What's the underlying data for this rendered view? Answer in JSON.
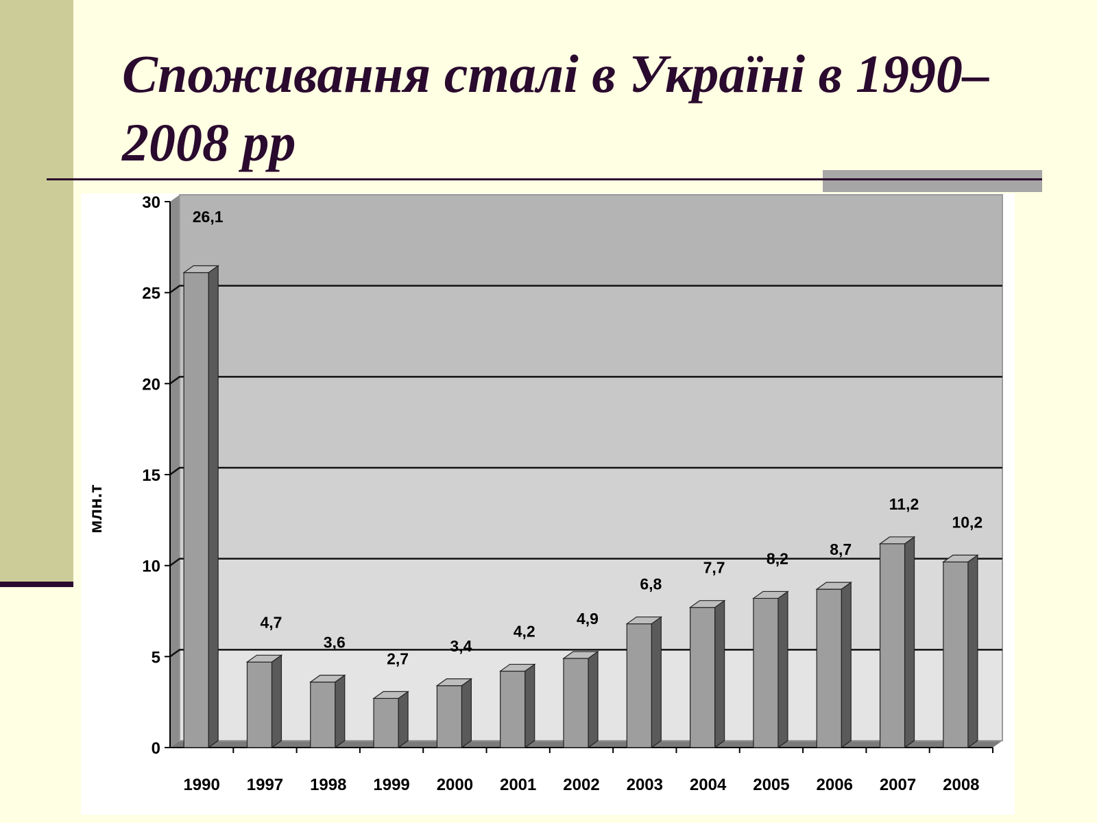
{
  "slide": {
    "title": "Споживання сталі в Україні в 1990–2008 рр"
  },
  "colors": {
    "background": "#FFFFE3",
    "side_bar": "#CCCC99",
    "title": "#2A0A2E",
    "bar_front": "#9E9E9E",
    "bar_side": "#5A5A5A",
    "bar_top": "#BDBDBD"
  },
  "chart_data": {
    "type": "bar",
    "categories": [
      "1990",
      "1997",
      "1998",
      "1999",
      "2000",
      "2001",
      "2002",
      "2003",
      "2004",
      "2005",
      "2006",
      "2007",
      "2008"
    ],
    "values": [
      26.1,
      4.7,
      3.6,
      2.7,
      3.4,
      4.2,
      4.9,
      6.8,
      7.7,
      8.2,
      8.7,
      11.2,
      10.2
    ],
    "data_labels": [
      "26,1",
      "4,7",
      "3,6",
      "2,7",
      "3,4",
      "4,2",
      "4,9",
      "6,8",
      "7,7",
      "8,2",
      "8,7",
      "11,2",
      "10,2"
    ],
    "ylabel": "млн.т",
    "ylim": [
      0,
      30
    ],
    "yticks": [
      0,
      5,
      10,
      15,
      20,
      25,
      30
    ],
    "grid": true,
    "style": "3d"
  }
}
